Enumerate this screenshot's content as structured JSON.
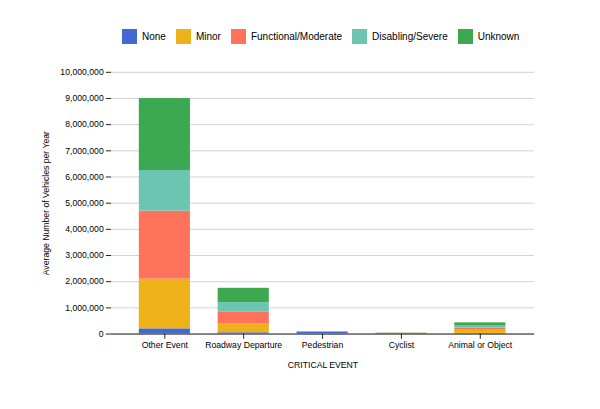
{
  "chart_data": {
    "type": "bar",
    "stacked": true,
    "categories": [
      "Other Event",
      "Roadway Departure",
      "Pedestrian",
      "Cyclist",
      "Animal or Object"
    ],
    "series": [
      {
        "name": "None",
        "values": [
          200000,
          50000,
          75000,
          25000,
          25000
        ]
      },
      {
        "name": "Minor",
        "values": [
          1900000,
          350000,
          5000,
          5000,
          150000
        ]
      },
      {
        "name": "Functional/Moderate",
        "values": [
          2600000,
          450000,
          5000,
          3000,
          50000
        ]
      },
      {
        "name": "Disabling/Severe",
        "values": [
          1550000,
          350000,
          5000,
          3000,
          80000
        ]
      },
      {
        "name": "Unknown",
        "values": [
          2750000,
          550000,
          5000,
          5000,
          125000
        ]
      }
    ],
    "xlabel": "CRITICAL EVENT",
    "ylabel": "Average Number of Vehicles per Year",
    "ylim": [
      0,
      10000000
    ],
    "yticks": [
      0,
      {
        "value": 1000000,
        "label": "1,000,000"
      },
      {
        "value": 2000000,
        "label": "2,000,000"
      },
      {
        "value": 3000000,
        "label": "3,000,000"
      },
      {
        "value": 4000000,
        "label": "4,000,000"
      },
      {
        "value": 5000000,
        "label": "5,000,000"
      },
      {
        "value": 6000000,
        "label": "6,000,000"
      },
      {
        "value": 7000000,
        "label": "7,000,000"
      },
      {
        "value": 8000000,
        "label": "8,000,000"
      },
      {
        "value": 9000000,
        "label": "9,000,000"
      },
      {
        "value": 10000000,
        "label": "10,000,000"
      }
    ],
    "grid": true,
    "legend": "top"
  }
}
